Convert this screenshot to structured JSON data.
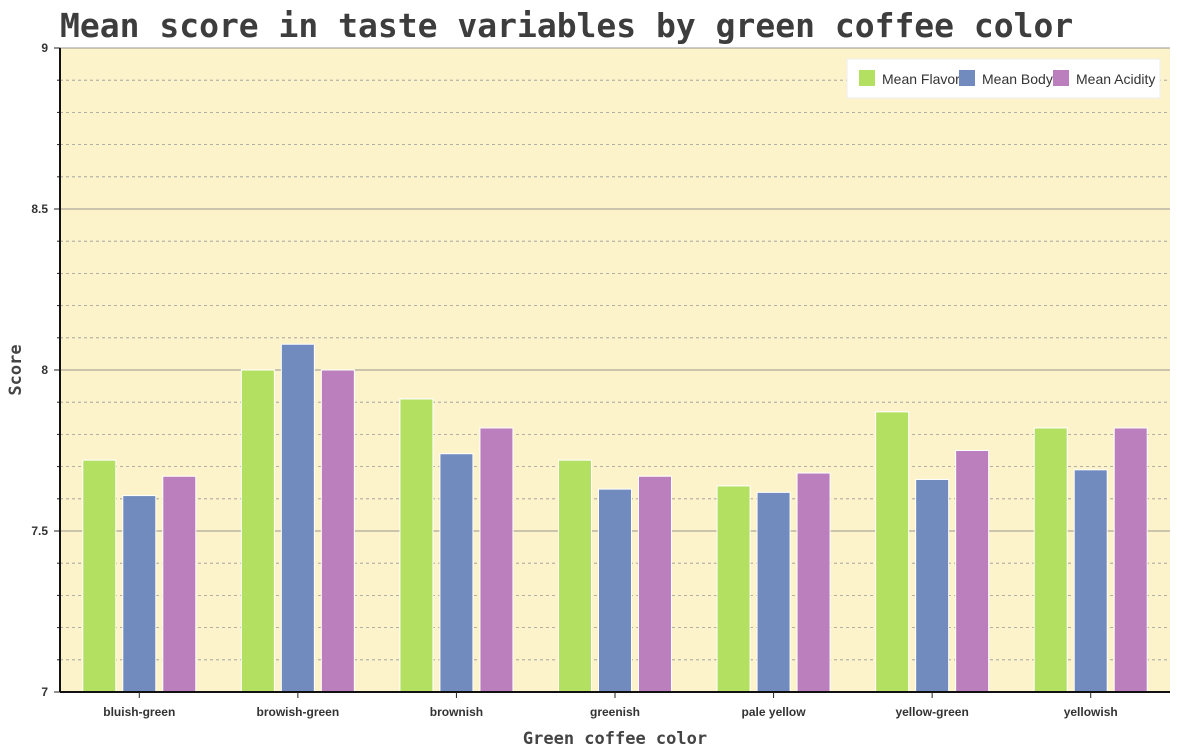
{
  "chart_data": {
    "type": "bar",
    "title": "Mean score in taste variables by green coffee color",
    "xlabel": "Green coffee color",
    "ylabel": "Score",
    "categories": [
      "bluish-green",
      "browish-green",
      "brownish",
      "greenish",
      "pale yellow",
      "yellow-green",
      "yellowish"
    ],
    "series": [
      {
        "name": "Mean Flavor",
        "color": "#b3e061",
        "values": [
          7.72,
          8.0,
          7.91,
          7.72,
          7.64,
          7.87,
          7.82
        ]
      },
      {
        "name": "Mean Body",
        "color": "#728bbe",
        "values": [
          7.61,
          8.08,
          7.74,
          7.63,
          7.62,
          7.66,
          7.69
        ]
      },
      {
        "name": "Mean Acidity",
        "color": "#bc7fbd",
        "values": [
          7.67,
          8.0,
          7.82,
          7.67,
          7.68,
          7.75,
          7.82
        ]
      }
    ],
    "ylim": [
      7,
      9
    ],
    "yticks": [
      "7",
      "7.5",
      "8",
      "8.5",
      "9"
    ],
    "grid": true,
    "legend_position": "top-right",
    "plot_background": "#fdf3cb"
  }
}
